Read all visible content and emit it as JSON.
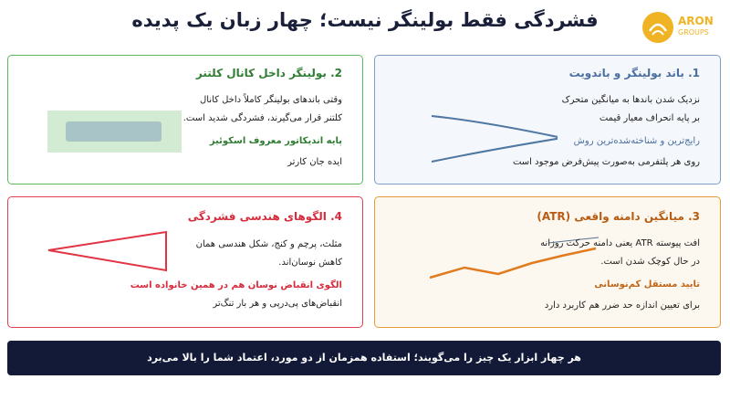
{
  "header": {
    "title": "فشردگی فقط بولینگر نیست؛ چهار زبان یک پدیده",
    "logo": {
      "name": "ARON",
      "tagline": "GROUPS"
    }
  },
  "cards": [
    {
      "title": "1. باند بولینگر و باندویت",
      "lines": [
        "نزدیک شدن باندها به میانگین متحرک",
        "بر پایه انحراف معیار قیمت"
      ],
      "highlight": "رایج‌ترین و شناخته‌شده‌ترین روش",
      "note": "روی هر پلتفرمی به‌صورت پیش‌فرض موجود است"
    },
    {
      "title": "2. بولینگر داخل کانال کلتنر",
      "lines": [
        "وقتی باندهای بولینگر کاملاً داخل کانال",
        "کلتنر قرار می‌گیرند، فشردگی شدید است."
      ],
      "highlight": "پایه اندیکاتور معروف اسکوئیز",
      "note": "ایده جان کارتر"
    },
    {
      "title": "3. میانگین دامنه واقعی (ATR)",
      "lines": [
        "افت پیوسته ATR یعنی دامنه حرکت روزانه",
        "در حال کوچک شدن است."
      ],
      "highlight": "تایید مستقل کم‌نوسانی",
      "note": "برای تعیین اندازه حد ضرر هم کاربرد دارد"
    },
    {
      "title": "4. الگوهای هندسی فشردگی",
      "lines": [
        "مثلث، پرچم و کنج، شکل هندسی همان",
        "کاهش نوسان‌اند."
      ],
      "highlight": "الگوی انقباض نوسان هم در همین خانواده است",
      "note": "انقباض‌های پی‌درپی و هر بار تنگ‌تر"
    }
  ],
  "footer": {
    "text": "هر چهار ابزار یک چیز را می‌گویند؛ استفاده همزمان از دو مورد، اعتماد شما را بالا می‌برد"
  }
}
